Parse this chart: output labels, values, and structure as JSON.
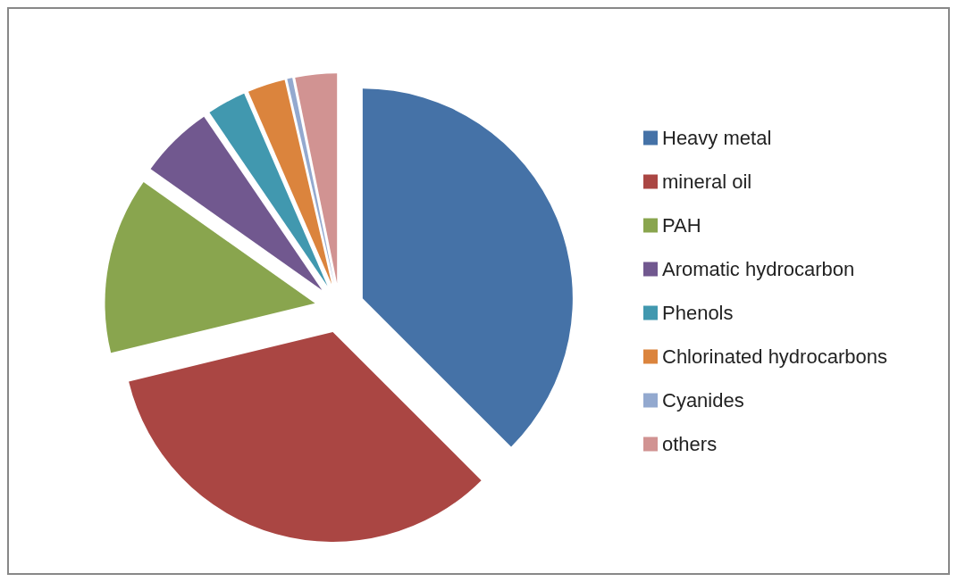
{
  "chart_data": {
    "type": "pie",
    "categories": [
      "Heavy metal",
      "mineral oil",
      "PAH",
      "Aromatic hydrocarbon",
      "Phenols",
      "Chlorinated hydrocarbons",
      "Cyanides",
      "others"
    ],
    "values": [
      37.5,
      33.7,
      13.6,
      5.7,
      3.0,
      2.9,
      0.4,
      3.2
    ],
    "colors": [
      "#4572a7",
      "#aa4643",
      "#89a54e",
      "#71588f",
      "#4198af",
      "#db843d",
      "#93a9cf",
      "#d19392"
    ],
    "legend": "right"
  }
}
